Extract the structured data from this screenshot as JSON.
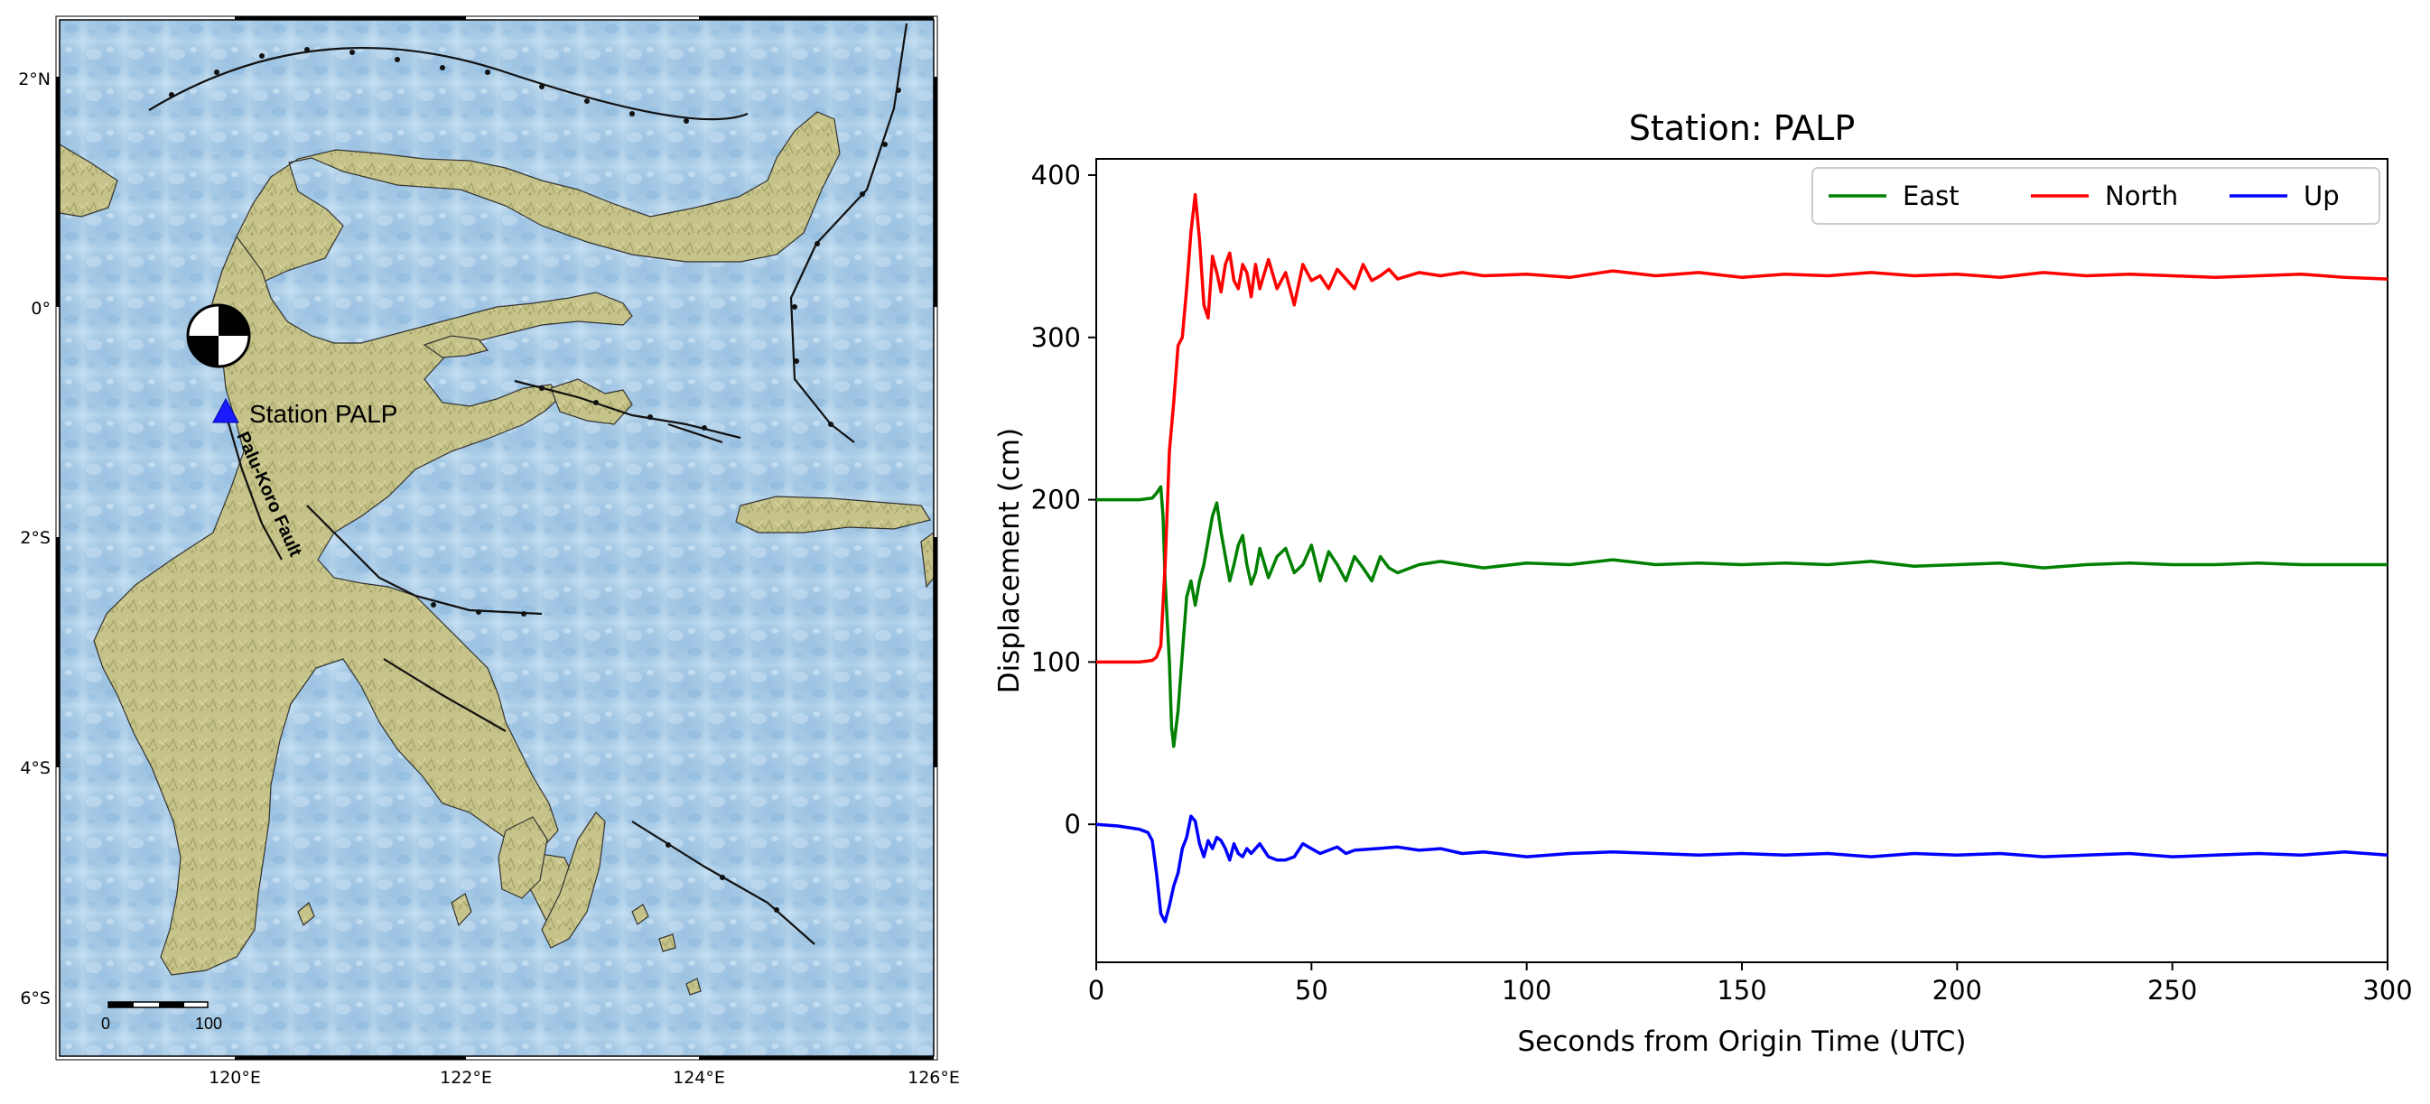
{
  "map": {
    "lat_labels": [
      "2°N",
      "0°",
      "2°S",
      "4°S",
      "6°S"
    ],
    "lon_labels": [
      "120°E",
      "122°E",
      "124°E",
      "126°E"
    ],
    "station_label": "Station PALP",
    "fault_label": "Palu-Koro Fault",
    "scalebar": {
      "start": "0",
      "end": "100"
    },
    "colors": {
      "ocean": "#a9cbe6",
      "land": "#c8c48a",
      "station": "#1a1aff"
    }
  },
  "chart_data": {
    "type": "line",
    "title": "Station: PALP",
    "xlabel": "Seconds from Origin Time (UTC)",
    "ylabel": "Displacement (cm)",
    "xlim": [
      0,
      300
    ],
    "ylim": [
      -85,
      410
    ],
    "xticks": [
      "0",
      "50",
      "100",
      "150",
      "200",
      "250",
      "300"
    ],
    "yticks": [
      "0",
      "100",
      "200",
      "300",
      "400"
    ],
    "legend_position": "top-right",
    "grid": false,
    "series": [
      {
        "name": "East",
        "color": "#008000",
        "x": [
          0,
          5,
          10,
          13,
          14,
          15,
          15.5,
          16,
          17,
          17.5,
          18,
          19,
          20,
          21,
          22,
          23,
          24,
          25,
          26,
          27,
          28,
          29,
          30,
          31,
          32,
          33,
          34,
          35,
          36,
          37,
          38,
          40,
          42,
          44,
          46,
          48,
          50,
          52,
          54,
          56,
          58,
          60,
          62,
          64,
          66,
          68,
          70,
          75,
          80,
          85,
          90,
          100,
          110,
          120,
          130,
          140,
          150,
          160,
          170,
          180,
          190,
          200,
          210,
          220,
          230,
          240,
          250,
          260,
          270,
          280,
          290,
          300
        ],
        "y": [
          200,
          200,
          200,
          201,
          204,
          208,
          190,
          150,
          100,
          60,
          48,
          70,
          105,
          140,
          150,
          135,
          150,
          160,
          175,
          190,
          198,
          180,
          165,
          150,
          160,
          172,
          178,
          160,
          148,
          155,
          170,
          152,
          165,
          170,
          155,
          160,
          172,
          150,
          168,
          160,
          150,
          165,
          158,
          150,
          165,
          158,
          155,
          160,
          162,
          160,
          158,
          161,
          160,
          163,
          160,
          161,
          160,
          161,
          160,
          162,
          159,
          160,
          161,
          158,
          160,
          161,
          160,
          160,
          161,
          160,
          160,
          160
        ]
      },
      {
        "name": "North",
        "color": "#ff0000",
        "x": [
          0,
          5,
          10,
          13,
          14,
          15,
          16,
          17,
          18,
          19,
          20,
          21,
          22,
          23,
          24,
          25,
          26,
          27,
          28,
          29,
          30,
          31,
          32,
          33,
          34,
          35,
          36,
          37,
          38,
          40,
          42,
          44,
          46,
          48,
          50,
          52,
          54,
          56,
          58,
          60,
          62,
          64,
          66,
          68,
          70,
          75,
          80,
          85,
          90,
          100,
          110,
          120,
          130,
          140,
          150,
          160,
          170,
          180,
          190,
          200,
          210,
          220,
          230,
          240,
          250,
          260,
          270,
          280,
          290,
          300
        ],
        "y": [
          100,
          100,
          100,
          101,
          103,
          110,
          160,
          230,
          260,
          295,
          300,
          330,
          365,
          388,
          360,
          320,
          312,
          350,
          340,
          328,
          345,
          352,
          335,
          330,
          345,
          340,
          325,
          345,
          330,
          348,
          330,
          340,
          320,
          345,
          335,
          338,
          330,
          342,
          336,
          330,
          345,
          335,
          338,
          342,
          336,
          340,
          338,
          340,
          338,
          339,
          337,
          341,
          338,
          340,
          337,
          339,
          338,
          340,
          338,
          339,
          337,
          340,
          338,
          339,
          338,
          337,
          338,
          339,
          337,
          336
        ]
      },
      {
        "name": "Up",
        "color": "#0000ff",
        "x": [
          0,
          5,
          10,
          12,
          13,
          14,
          15,
          16,
          17,
          18,
          19,
          20,
          21,
          22,
          23,
          24,
          25,
          26,
          27,
          28,
          29,
          30,
          31,
          32,
          33,
          34,
          35,
          36,
          38,
          40,
          42,
          44,
          46,
          48,
          50,
          52,
          54,
          56,
          58,
          60,
          65,
          70,
          75,
          80,
          85,
          90,
          100,
          110,
          120,
          130,
          140,
          150,
          160,
          170,
          180,
          190,
          200,
          210,
          220,
          230,
          240,
          250,
          260,
          270,
          280,
          290,
          300
        ],
        "y": [
          0,
          -1,
          -3,
          -5,
          -10,
          -30,
          -55,
          -60,
          -50,
          -38,
          -30,
          -15,
          -8,
          5,
          2,
          -12,
          -20,
          -10,
          -15,
          -8,
          -10,
          -15,
          -22,
          -12,
          -18,
          -20,
          -15,
          -18,
          -12,
          -20,
          -22,
          -22,
          -20,
          -12,
          -15,
          -18,
          -16,
          -14,
          -18,
          -16,
          -15,
          -14,
          -16,
          -15,
          -18,
          -17,
          -20,
          -18,
          -17,
          -18,
          -19,
          -18,
          -19,
          -18,
          -20,
          -18,
          -19,
          -18,
          -20,
          -19,
          -18,
          -20,
          -19,
          -18,
          -19,
          -17,
          -19
        ]
      }
    ]
  }
}
